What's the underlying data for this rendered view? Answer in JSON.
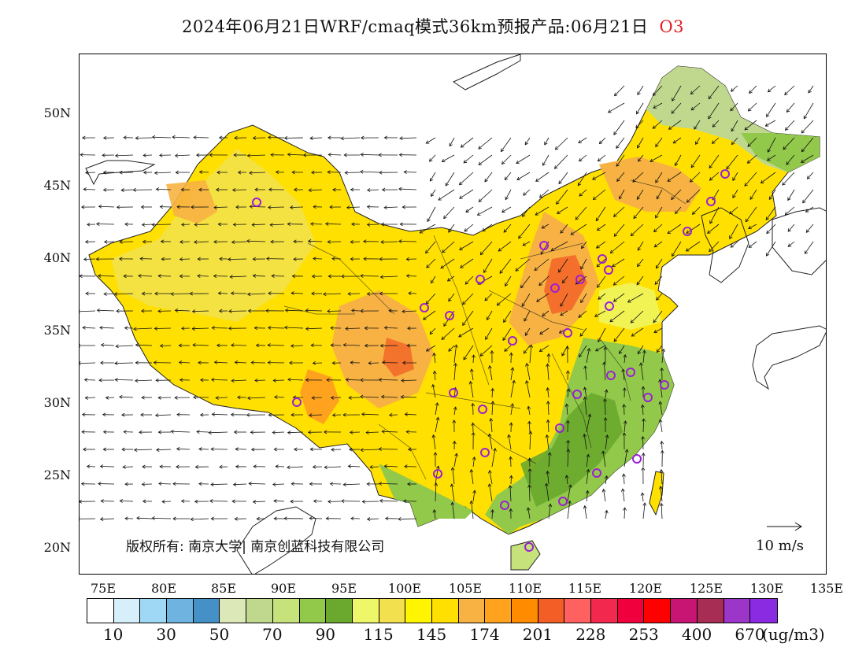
{
  "title": {
    "text": "2024年06月21日WRF/cmaq模式36km预报产品:06月21日",
    "pollutant": "O3",
    "pollutant_color": "#e02020"
  },
  "map": {
    "lat_labels": [
      "50N",
      "45N",
      "40N",
      "35N",
      "30N",
      "25N",
      "20N"
    ],
    "lon_labels": [
      "75E",
      "80E",
      "85E",
      "90E",
      "95E",
      "100E",
      "105E",
      "110E",
      "115E",
      "120E",
      "125E",
      "130E",
      "135E"
    ],
    "copyright": "版权所有: 南京大学| 南京创蓝科技有限公司",
    "wind_reference": "10 m/s"
  },
  "legend": {
    "colors": [
      "#ffffff",
      "#d6effa",
      "#9fd8f4",
      "#6fb3e0",
      "#4590c6",
      "#dde8b8",
      "#bfd88e",
      "#c6e27a",
      "#92c94a",
      "#6aa92e",
      "#eef76a",
      "#f2e04e",
      "#fff500",
      "#ffe000",
      "#f7b243",
      "#ffa31f",
      "#ff8c00",
      "#f25e26",
      "#ff6161",
      "#f2284f",
      "#f0003c",
      "#ff0000",
      "#c81473",
      "#a82d55",
      "#9b36c8",
      "#8a2be2"
    ],
    "labels": [
      "10",
      "30",
      "50",
      "70",
      "90",
      "115",
      "145",
      "174",
      "201",
      "228",
      "253",
      "400",
      "670"
    ],
    "unit": "(ug/m3)"
  }
}
